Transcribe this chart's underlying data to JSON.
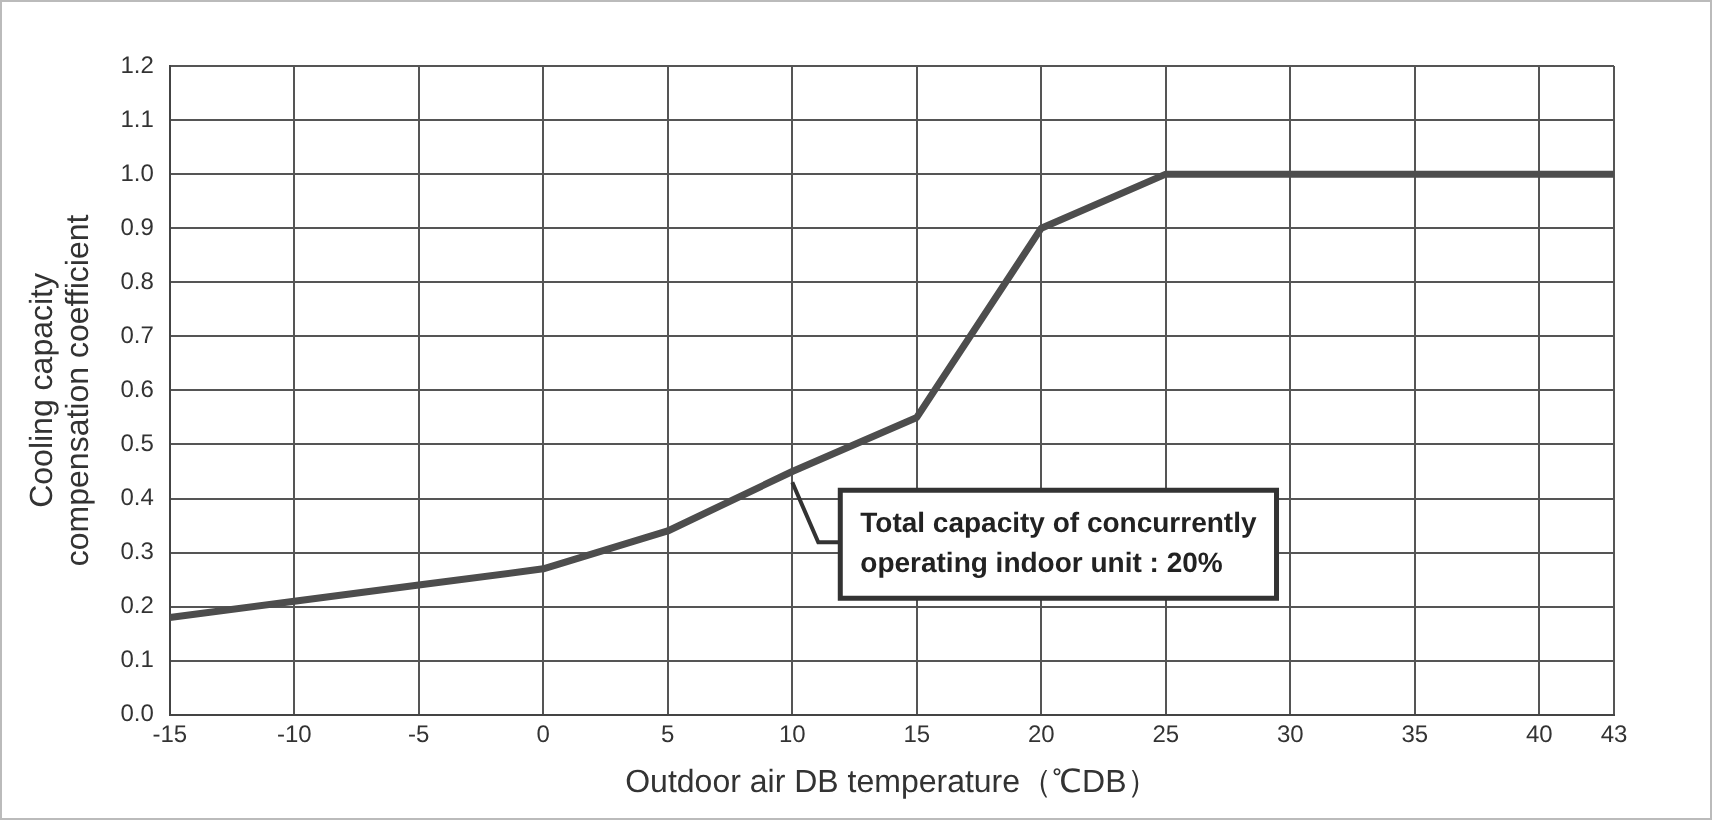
{
  "chart_data": {
    "type": "line",
    "xlabel": "Outdoor air DB temperature（℃DB）",
    "ylabel": "Cooling capacity\ncompensation coefficient",
    "x": [
      -15,
      -10,
      -5,
      0,
      5,
      10,
      15,
      20,
      25,
      43
    ],
    "series": [
      {
        "color": "#4d4d4d",
        "values": [
          0.18,
          0.21,
          0.24,
          0.27,
          0.34,
          0.45,
          0.55,
          0.9,
          1.0,
          1.0
        ]
      }
    ],
    "xlim": [
      -15,
      43
    ],
    "xticks": [
      -15,
      -10,
      -5,
      0,
      5,
      10,
      15,
      20,
      25,
      30,
      35,
      40,
      43
    ],
    "ylim": [
      0,
      1.2
    ],
    "yticks": [
      {
        "value": 0,
        "label": "0.0"
      },
      {
        "value": 0.1,
        "label": "0.1"
      },
      {
        "value": 0.2,
        "label": "0.2"
      },
      {
        "value": 0.3,
        "label": "0.3"
      },
      {
        "value": 0.4,
        "label": "0.4"
      },
      {
        "value": 0.5,
        "label": "0.5"
      },
      {
        "value": 0.6,
        "label": "0.6"
      },
      {
        "value": 0.7,
        "label": "0.7"
      },
      {
        "value": 0.8,
        "label": "0.8"
      },
      {
        "value": 0.9,
        "label": "0.9"
      },
      {
        "value": 1.0,
        "label": "1.0"
      },
      {
        "value": 1.1,
        "label": "1.1"
      },
      {
        "value": 1.2,
        "label": "1.2"
      }
    ],
    "annotations": [
      {
        "text": "Total capacity of concurrently\noperating indoor unit : 20%",
        "x": 10,
        "y": 0.43
      }
    ],
    "grid": true,
    "legend": false,
    "marker": "none",
    "line_style": "solid"
  }
}
